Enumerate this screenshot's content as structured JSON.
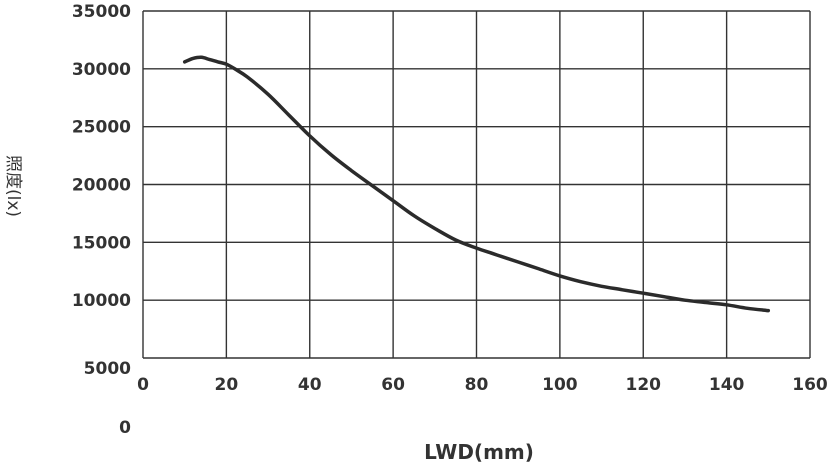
{
  "chart_data": {
    "type": "line",
    "xlabel": "LWD(mm)",
    "ylabel": "照度(lx)",
    "xlim": [
      0,
      160
    ],
    "ylim": [
      5000,
      35000
    ],
    "x_ticks": [
      "0",
      "20",
      "40",
      "60",
      "80",
      "100",
      "120",
      "140",
      "160"
    ],
    "y_ticks": [
      "5000",
      "10000",
      "15000",
      "20000",
      "25000",
      "30000",
      "35000"
    ],
    "y_zero_label": "0",
    "grid": true,
    "line_color": "#2b2b2b",
    "grid_color": "#333333",
    "series": [
      {
        "x": [
          10,
          12,
          14,
          16,
          18,
          20,
          22,
          25,
          30,
          35,
          40,
          45,
          50,
          55,
          60,
          65,
          70,
          75,
          80,
          85,
          90,
          95,
          100,
          105,
          110,
          115,
          120,
          125,
          130,
          135,
          140,
          145,
          150
        ],
        "values": [
          30600,
          30900,
          31000,
          30800,
          30600,
          30400,
          30000,
          29300,
          27800,
          26000,
          24200,
          22600,
          21200,
          19900,
          18600,
          17300,
          16200,
          15200,
          14500,
          13900,
          13300,
          12700,
          12100,
          11600,
          11200,
          10900,
          10600,
          10300,
          10000,
          9800,
          9600,
          9300,
          9100
        ]
      }
    ]
  }
}
